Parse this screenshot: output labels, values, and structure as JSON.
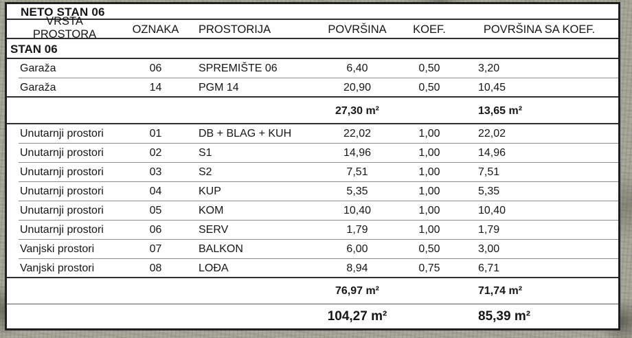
{
  "title": "NETO STAN 06",
  "section_label": "STAN 06",
  "columns": {
    "vrsta_line1": "VRSTA",
    "vrsta_line2": "PROSTORA",
    "oznaka": "OZNAKA",
    "prostorija": "PROSTORIJA",
    "povrsina": "POVRŠINA",
    "koef": "KOEF.",
    "povrsina_koef": "POVRŠINA SA KOEF."
  },
  "groups": [
    {
      "rows": [
        {
          "vrsta": "Garaža",
          "oznaka": "06",
          "prostorija": "SPREMIŠTE 06",
          "povrsina": "6,40",
          "koef": "0,50",
          "povrsina_koef": "3,20"
        },
        {
          "vrsta": "Garaža",
          "oznaka": "14",
          "prostorija": "PGM 14",
          "povrsina": "20,90",
          "koef": "0,50",
          "povrsina_koef": "10,45"
        }
      ],
      "subtotal": {
        "povrsina": "27,30 m²",
        "povrsina_koef": "13,65 m²"
      }
    },
    {
      "rows": [
        {
          "vrsta": "Unutarnji prostori",
          "oznaka": "01",
          "prostorija": "DB + BLAG + KUH",
          "povrsina": "22,02",
          "koef": "1,00",
          "povrsina_koef": "22,02"
        },
        {
          "vrsta": "Unutarnji prostori",
          "oznaka": "02",
          "prostorija": "S1",
          "povrsina": "14,96",
          "koef": "1,00",
          "povrsina_koef": "14,96"
        },
        {
          "vrsta": "Unutarnji prostori",
          "oznaka": "03",
          "prostorija": "S2",
          "povrsina": "7,51",
          "koef": "1,00",
          "povrsina_koef": "7,51"
        },
        {
          "vrsta": "Unutarnji prostori",
          "oznaka": "04",
          "prostorija": "KUP",
          "povrsina": "5,35",
          "koef": "1,00",
          "povrsina_koef": "5,35"
        },
        {
          "vrsta": "Unutarnji prostori",
          "oznaka": "05",
          "prostorija": "KOM",
          "povrsina": "10,40",
          "koef": "1,00",
          "povrsina_koef": "10,40"
        },
        {
          "vrsta": "Unutarnji prostori",
          "oznaka": "06",
          "prostorija": "SERV",
          "povrsina": "1,79",
          "koef": "1,00",
          "povrsina_koef": "1,79"
        },
        {
          "vrsta": "Vanjski prostori",
          "oznaka": "07",
          "prostorija": "BALKON",
          "povrsina": "6,00",
          "koef": "0,50",
          "povrsina_koef": "3,00"
        },
        {
          "vrsta": "Vanjski prostori",
          "oznaka": "08",
          "prostorija": "LOĐA",
          "povrsina": "8,94",
          "koef": "0,75",
          "povrsina_koef": "6,71"
        }
      ],
      "subtotal": {
        "povrsina": "76,97 m²",
        "povrsina_koef": "71,74 m²"
      }
    }
  ],
  "grand_total": {
    "povrsina": "104,27 m²",
    "povrsina_koef": "85,39 m²"
  }
}
